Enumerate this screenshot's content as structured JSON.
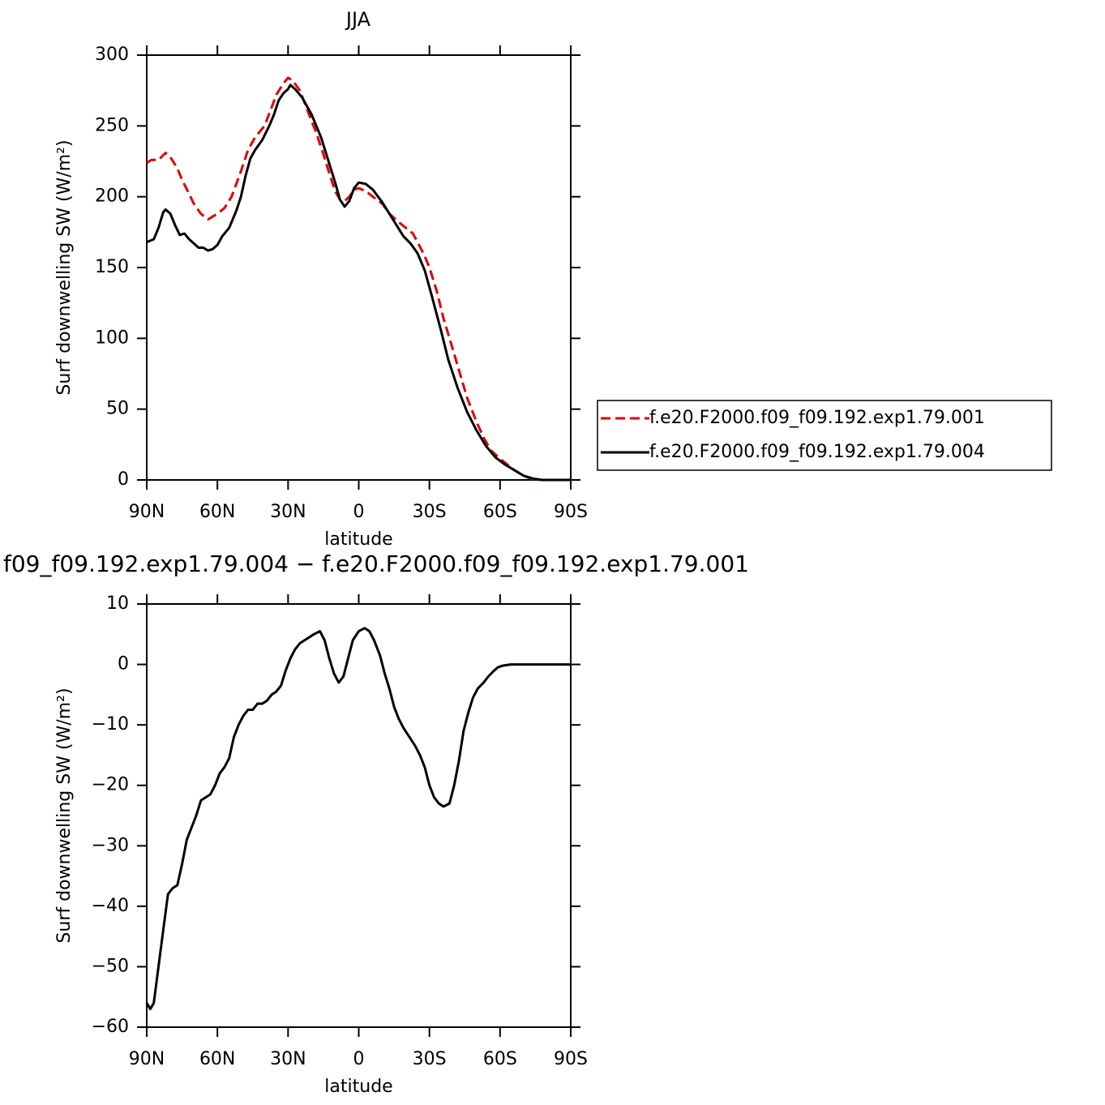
{
  "chart_data": [
    {
      "type": "line",
      "title": "JJA",
      "xlabel": "latitude",
      "ylabel": "Surf downwelling SW (W/m²)",
      "xlim": [
        90,
        -90
      ],
      "xticks": [
        {
          "value": 90,
          "label": "90N"
        },
        {
          "value": 60,
          "label": "60N"
        },
        {
          "value": 30,
          "label": "30N"
        },
        0,
        {
          "value": -30,
          "label": "30S"
        },
        {
          "value": -60,
          "label": "60S"
        },
        {
          "value": -90,
          "label": "90S"
        }
      ],
      "ylim": [
        0,
        300
      ],
      "yticks": [
        0,
        50,
        100,
        150,
        200,
        250,
        300
      ],
      "legend": "right",
      "series": [
        {
          "name": "f.e20.F2000.f09_f09.192.exp1.79.001",
          "color": "#e00000",
          "line_style": "dashed",
          "x": [
            90,
            88,
            85,
            82,
            80,
            77,
            75,
            72,
            70,
            67,
            64,
            60,
            57,
            54,
            50,
            47,
            44,
            40,
            37,
            35,
            32,
            30,
            28,
            25,
            22,
            18,
            15,
            12,
            10,
            8,
            6,
            4,
            2,
            0,
            -3,
            -6,
            -10,
            -13,
            -17,
            -20,
            -23,
            -25,
            -28,
            -30,
            -33,
            -36,
            -40,
            -43,
            -46,
            -50,
            -53,
            -56,
            -60,
            -63,
            -66,
            -70,
            -73,
            -76,
            -80,
            -90
          ],
          "values": [
            224,
            226,
            226,
            231,
            228,
            220,
            212,
            202,
            195,
            188,
            184,
            188,
            192,
            200,
            218,
            233,
            242,
            250,
            263,
            272,
            280,
            284,
            282,
            275,
            262,
            245,
            230,
            214,
            204,
            198,
            197,
            200,
            205,
            206,
            204,
            200,
            195,
            188,
            182,
            178,
            174,
            168,
            158,
            150,
            134,
            114,
            92,
            75,
            58,
            41,
            30,
            21,
            15,
            11,
            7,
            3,
            1,
            0,
            0,
            0
          ]
        },
        {
          "name": "f.e20.F2000.f09_f09.192.exp1.79.004",
          "color": "#000000",
          "line_style": "solid",
          "x": [
            90,
            87,
            85,
            83,
            82,
            80,
            78,
            76,
            74,
            72,
            70,
            68,
            66,
            64,
            62,
            60,
            58,
            55,
            52,
            50,
            48,
            46,
            44,
            41,
            38,
            36,
            34,
            32,
            30,
            29,
            27,
            24,
            20,
            16,
            13,
            10,
            8,
            6,
            4,
            2,
            0,
            -3,
            -6,
            -10,
            -13,
            -16,
            -19,
            -22,
            -25,
            -28,
            -31,
            -35,
            -38,
            -42,
            -46,
            -50,
            -54,
            -58,
            -62,
            -66,
            -70,
            -74,
            -78,
            -90
          ],
          "values": [
            168,
            170,
            178,
            189,
            191,
            188,
            180,
            173,
            174,
            170,
            167,
            164,
            164,
            162,
            163,
            166,
            172,
            178,
            190,
            200,
            215,
            227,
            233,
            240,
            250,
            258,
            268,
            273,
            276,
            279,
            276,
            270,
            258,
            242,
            226,
            210,
            198,
            193,
            197,
            206,
            210,
            209,
            205,
            196,
            188,
            180,
            172,
            167,
            160,
            148,
            130,
            105,
            85,
            65,
            48,
            35,
            24,
            16,
            11,
            7,
            3,
            1,
            0,
            0
          ]
        }
      ]
    },
    {
      "type": "line",
      "title": "f09_f09.192.exp1.79.004 − f.e20.F2000.f09_f09.192.exp1.79.001",
      "xlabel": "latitude",
      "ylabel": "Surf downwelling SW (W/m²)",
      "xlim": [
        90,
        -90
      ],
      "xticks": [
        {
          "value": 90,
          "label": "90N"
        },
        {
          "value": 60,
          "label": "60N"
        },
        {
          "value": 30,
          "label": "30N"
        },
        0,
        {
          "value": -30,
          "label": "30S"
        },
        {
          "value": -60,
          "label": "60S"
        },
        {
          "value": -90,
          "label": "90S"
        }
      ],
      "ylim": [
        -60,
        10
      ],
      "yticks": [
        {
          "value": -60,
          "label": "−60"
        },
        {
          "value": -50,
          "label": "−50"
        },
        {
          "value": -40,
          "label": "−40"
        },
        {
          "value": -30,
          "label": "−30"
        },
        {
          "value": -20,
          "label": "−20"
        },
        {
          "value": -10,
          "label": "−10"
        },
        0,
        10
      ],
      "series": [
        {
          "color": "#000000",
          "line_style": "solid",
          "x": [
            90,
            88.5,
            87,
            85,
            83,
            81,
            79,
            77,
            75,
            73,
            71,
            69,
            67,
            65,
            63,
            61,
            59,
            57,
            55,
            53,
            51,
            49,
            47,
            45,
            43,
            41,
            39,
            37,
            35,
            33,
            31,
            29,
            27,
            25,
            23,
            21,
            19,
            16.5,
            14.5,
            12.5,
            10.5,
            8.5,
            6.5,
            4.5,
            2.5,
            0,
            -2.5,
            -4.5,
            -6.5,
            -9,
            -11,
            -13,
            -15,
            -17,
            -19,
            -21.5,
            -24,
            -26,
            -28,
            -30,
            -32,
            -34,
            -36,
            -38.5,
            -40.5,
            -42.5,
            -44.5,
            -46.5,
            -48.5,
            -50.5,
            -53,
            -55,
            -57,
            -59,
            -61,
            -64.5,
            -71.5,
            -90
          ],
          "values": [
            -56,
            -57,
            -56,
            -50,
            -44,
            -38,
            -37,
            -36.5,
            -33,
            -29,
            -27,
            -25,
            -22.5,
            -22,
            -21.5,
            -20,
            -18,
            -17,
            -15.5,
            -12,
            -10,
            -8.5,
            -7.5,
            -7.5,
            -6.5,
            -6.5,
            -6,
            -5,
            -4.5,
            -3.5,
            -1,
            1,
            2.5,
            3.5,
            4,
            4.5,
            5,
            5.5,
            4,
            1,
            -1.5,
            -3,
            -2,
            1,
            4,
            5.5,
            6,
            5.5,
            4,
            1.5,
            -1.5,
            -4,
            -7,
            -9,
            -10.5,
            -12,
            -13.5,
            -15,
            -17,
            -20,
            -22,
            -23,
            -23.5,
            -23,
            -20,
            -16,
            -11,
            -8,
            -5.5,
            -4,
            -3,
            -2,
            -1.2,
            -0.5,
            -0.2,
            0,
            0,
            0
          ]
        }
      ]
    }
  ]
}
